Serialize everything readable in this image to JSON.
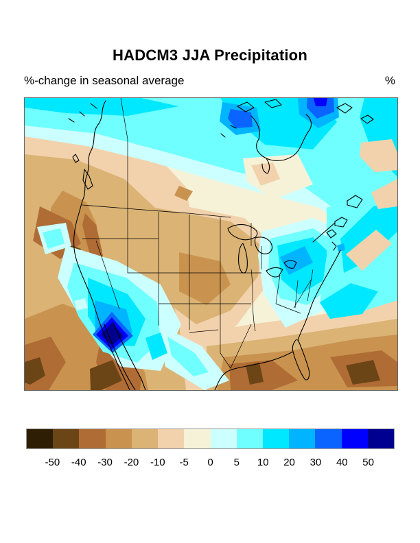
{
  "header": {
    "title": "HADCM3 JJA Precipitation",
    "subtitle": "%-change in seasonal average",
    "unit_label": "%"
  },
  "chart_data": {
    "type": "heatmap",
    "subtype": "filled-contour-map",
    "title": "HADCM3 JJA Precipitation",
    "subtitle": "%-change in seasonal average",
    "units": "%",
    "region_shown": "North America (Pacific to western Atlantic, Mexico to Arctic)",
    "legend_position": "bottom",
    "grid": false,
    "colorbar": {
      "orientation": "horizontal",
      "tick_labels": [
        "-50",
        "-40",
        "-30",
        "-20",
        "-10",
        "-5",
        "0",
        "5",
        "10",
        "20",
        "30",
        "40",
        "50"
      ],
      "colors": [
        "#2e1e04",
        "#6b4516",
        "#b06c35",
        "#c9934f",
        "#dab375",
        "#f2d2ac",
        "#f5f2d8",
        "#ccffff",
        "#70ffff",
        "#00e8ff",
        "#00b4ff",
        "#0a64ff",
        "#0000ff",
        "#000090"
      ]
    },
    "anomaly_centers": [
      {
        "region": "Southern California / lower Colorado basin bullseye",
        "change_pct": "greater than +50"
      },
      {
        "region": "Northeast US (New York / Pennsylvania)",
        "change_pct": "+20 to +40"
      },
      {
        "region": "Western Hudson Bay",
        "change_pct": "+20 to +40"
      },
      {
        "region": "Northeastern Hudson Bay / Baffin",
        "change_pct": "+30 to +50"
      },
      {
        "region": "Arctic coastal band across top of map",
        "change_pct": "+5 to +20"
      },
      {
        "region": "Western North Atlantic streaks",
        "change_pct": "+5 to +20"
      },
      {
        "region": "Offshore Pacific Northwest and California coast",
        "change_pct": "-20 to -40"
      },
      {
        "region": "Great Basin / Nevada spot",
        "change_pct": "-30 to -40"
      },
      {
        "region": "Great Plains streak",
        "change_pct": "-10 to -30"
      },
      {
        "region": "Baja California / northwest Mexico",
        "change_pct": "-30 to -50"
      },
      {
        "region": "Gulf of Mexico off Texas",
        "change_pct": "-30 to -50"
      },
      {
        "region": "Caribbean near Cuba",
        "change_pct": "-40 to -50"
      },
      {
        "region": "Upper Midwest and Great Lakes",
        "change_pct": "-5 to +5"
      }
    ]
  }
}
